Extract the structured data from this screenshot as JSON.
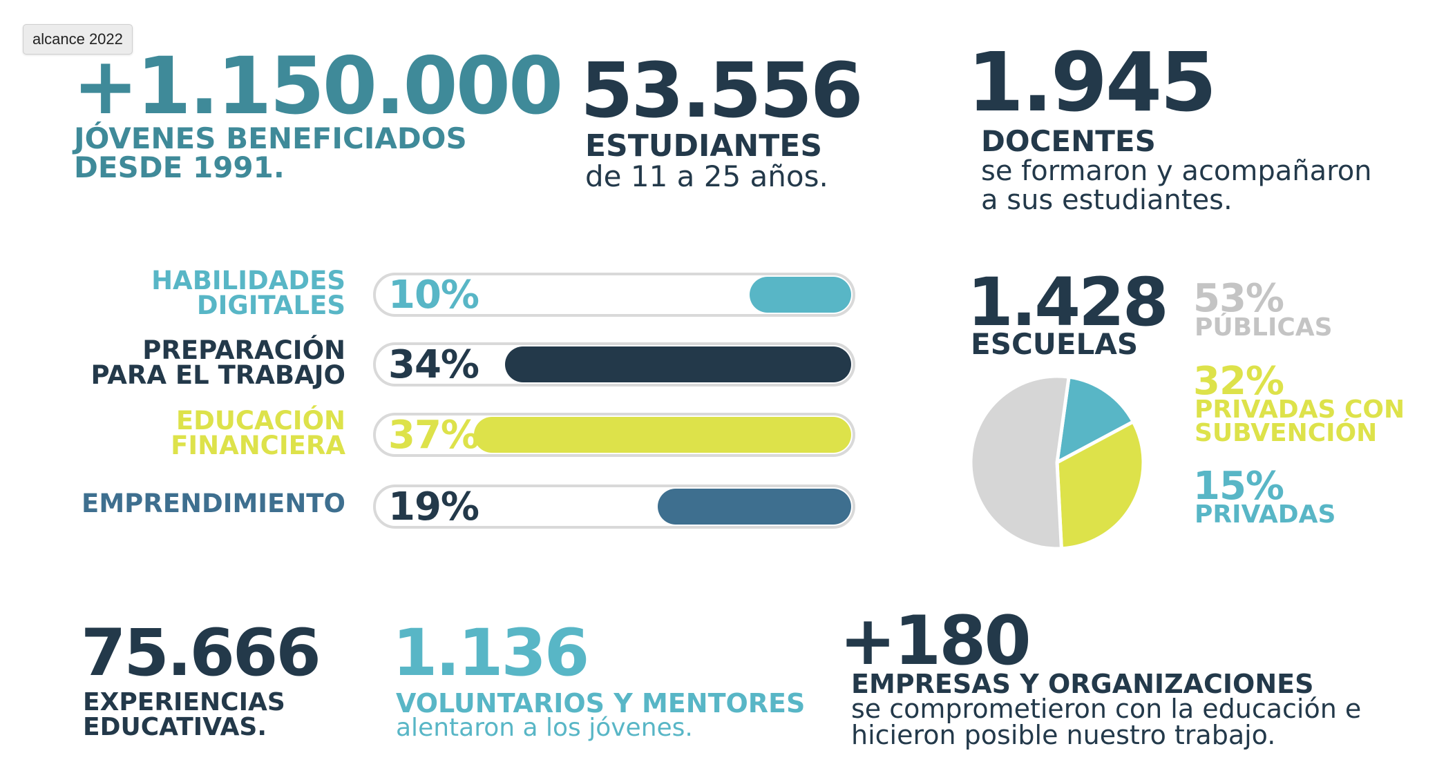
{
  "tooltip": "alcance 2022",
  "stats": {
    "jovenes": {
      "number": "+1.150.000",
      "line1": "JÓVENES BENEFICIADOS",
      "line2": "DESDE 1991."
    },
    "estudiantes": {
      "number": "53.556",
      "label": "ESTUDIANTES",
      "desc": "de 11 a 25 años."
    },
    "docentes": {
      "number": "1.945",
      "label": "DOCENTES",
      "desc1": "se formaron y acompañaron",
      "desc2": "a sus estudiantes."
    },
    "experiencias": {
      "number": "75.666",
      "line1": "EXPERIENCIAS",
      "line2": "EDUCATIVAS."
    },
    "voluntarios": {
      "number": "1.136",
      "label": "VOLUNTARIOS Y MENTORES",
      "desc": "alentaron a los jóvenes."
    },
    "empresas": {
      "number": "+180",
      "label": "EMPRESAS Y ORGANIZACIONES",
      "desc1": "se comprometieron con la educación e",
      "desc2": "hicieron posible nuestro trabajo."
    }
  },
  "colors": {
    "teal": "#3f8a99",
    "dark": "#23394a",
    "lightteal": "#58b6c6",
    "yellow": "#dde24a",
    "blue": "#3e6f8f",
    "gray": "#d9d9d9"
  },
  "chart_data": [
    {
      "type": "bar",
      "orientation": "horizontal",
      "categories": [
        [
          "HABILIDADES",
          "DIGITALES"
        ],
        [
          "PREPARACIÓN",
          "PARA EL TRABAJO"
        ],
        [
          "EDUCACIÓN",
          "FINANCIERA"
        ],
        [
          "EMPRENDIMIENTO"
        ]
      ],
      "values": [
        10,
        34,
        37,
        19
      ],
      "value_labels": [
        "10%",
        "34%",
        "37%",
        "19%"
      ],
      "colors": [
        "#58b6c6",
        "#23394a",
        "#dde24a",
        "#3e6f8f"
      ],
      "label_colors": [
        "#58b6c6",
        "#23394a",
        "#dde24a",
        "#3e6f8f"
      ],
      "value_label_colors": [
        "#58b6c6",
        "#23394a",
        "#dde24a",
        "#23394a"
      ],
      "xlim": [
        0,
        37
      ]
    },
    {
      "type": "pie",
      "title_number": "1.428",
      "title_label": "ESCUELAS",
      "slices": [
        {
          "value": 53,
          "pct_label": "53%",
          "name": "PÚBLICAS",
          "color": "#d6d6d6",
          "text_color": "#c4c4c4"
        },
        {
          "value": 32,
          "pct_label": "32%",
          "name": [
            "PRIVADAS CON",
            "SUBVENCIÓN"
          ],
          "color": "#dde24a",
          "text_color": "#dde24a"
        },
        {
          "value": 15,
          "pct_label": "15%",
          "name": "PRIVADAS",
          "color": "#58b6c6",
          "text_color": "#58b6c6"
        }
      ]
    }
  ]
}
